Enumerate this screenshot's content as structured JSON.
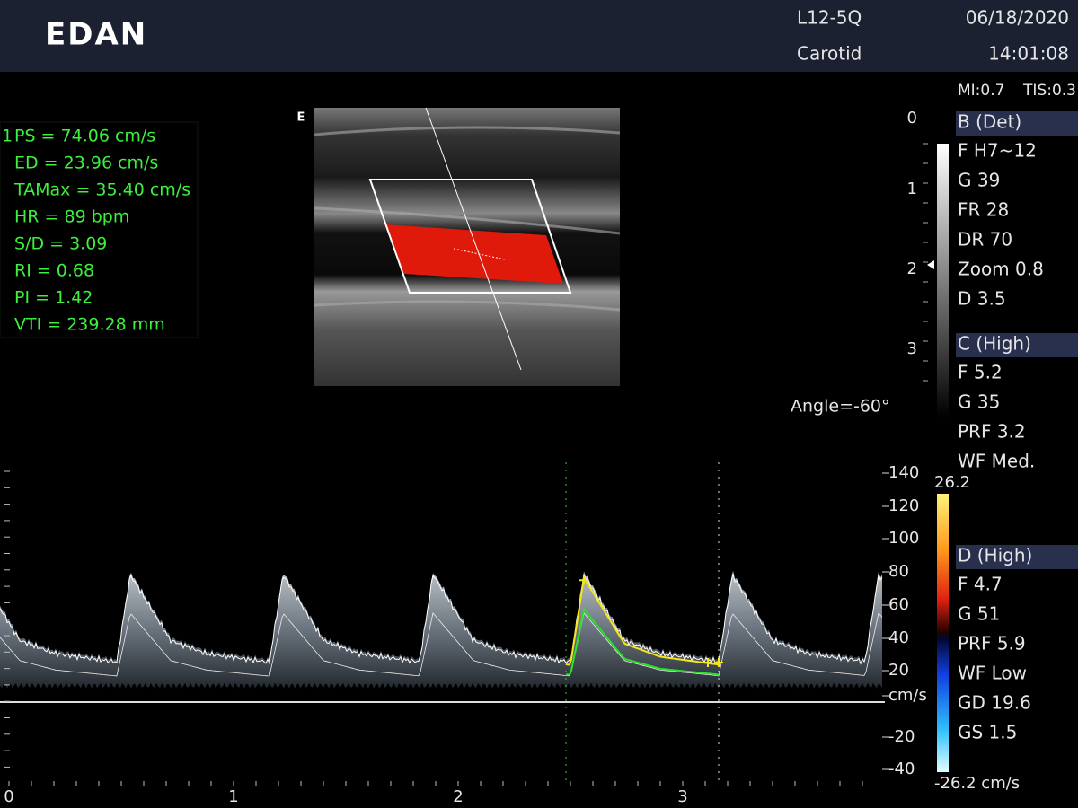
{
  "header": {
    "logo": "EDAN",
    "probe": "L12-5Q",
    "preset": "Carotid",
    "date": "06/18/2020",
    "time": "14:01:08"
  },
  "indices": {
    "mi": "MI:0.7",
    "tis": "TIS:0.3"
  },
  "measurements": {
    "index": "1",
    "rows": [
      "PS = 74.06 cm/s",
      "ED = 23.96 cm/s",
      "TAMax = 35.40 cm/s",
      "HR = 89 bpm",
      "S/D = 3.09",
      "RI = 0.68",
      "PI = 1.42",
      "VTI = 239.28 mm"
    ]
  },
  "image": {
    "marker": "E",
    "angle": "Angle=-60°"
  },
  "depth_scale": [
    "0",
    "1",
    "2",
    "3"
  ],
  "params": {
    "b": {
      "title": "B (Det)",
      "items": [
        "F H7~12",
        "G 39",
        "FR 28",
        "DR 70",
        "Zoom 0.8",
        "D 3.5"
      ]
    },
    "c": {
      "title": "C (High)",
      "items": [
        "F 5.2",
        "G 35",
        "PRF 3.2",
        "WF Med."
      ]
    },
    "d": {
      "title": "D (High)",
      "items": [
        "F 4.7",
        "G 51",
        "PRF 5.9",
        "WF Low",
        "GD 19.6",
        "GS 1.5"
      ]
    }
  },
  "color_scale": {
    "max": "26.2",
    "min": "-26.2 cm/s"
  },
  "spectrum": {
    "velocity_ticks": [
      "140",
      "120",
      "100",
      "80",
      "60",
      "40",
      "20",
      "cm/s",
      "-20",
      "-40"
    ],
    "time_ticks": [
      "0",
      "1",
      "2",
      "3"
    ]
  }
}
